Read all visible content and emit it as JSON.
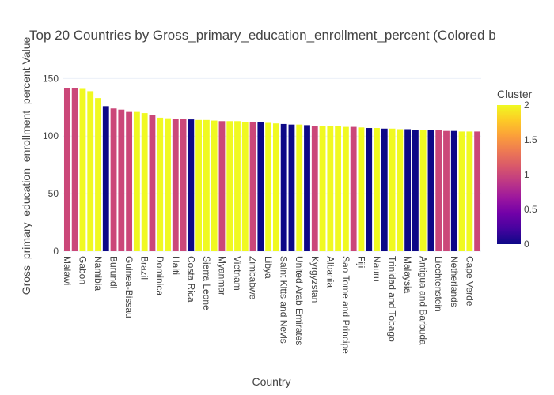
{
  "chart_data": {
    "type": "bar",
    "title": "Top 20 Countries by Gross_primary_education_enrollment_percent (Colored b",
    "x_label": "Country",
    "y_label": "Gross_primary_education_enrollment_percent Value",
    "categories": [
      "Malawi",
      null,
      "Gabon",
      null,
      "Namibia",
      null,
      "Burundi",
      null,
      "Guinea-Bissau",
      null,
      "Brazil",
      null,
      "Dominica",
      null,
      "Haiti",
      null,
      "Costa Rica",
      null,
      "Sierra Leone",
      null,
      "Myanmar",
      null,
      "Vietnam",
      null,
      "Zimbabwe",
      null,
      "Libya",
      null,
      "Saint Kitts and Nevis",
      null,
      "United Arab Emirates",
      null,
      "Kyrgyzstan",
      null,
      "Albania",
      null,
      "Sao Tome and Principe",
      null,
      "Fiji",
      null,
      "Nauru",
      null,
      "Trinidad and Tobago",
      null,
      "Malaysia",
      null,
      "Antigua and Barbuda",
      null,
      "Liechtenstein",
      null,
      "Netherlands",
      null,
      "Cape Verde",
      null
    ],
    "values": [
      142,
      142,
      141,
      139,
      133,
      126,
      124,
      123,
      121,
      121,
      120,
      118,
      116,
      115.5,
      115,
      115,
      114.5,
      114,
      114,
      113.5,
      113,
      113,
      113,
      112.5,
      112.5,
      112,
      111.5,
      111,
      110.5,
      110,
      110,
      109.5,
      109,
      109,
      108.5,
      108.5,
      108,
      108,
      107.5,
      107,
      107,
      106.5,
      106.5,
      106,
      106,
      105.5,
      105.5,
      105,
      105,
      104.5,
      104.5,
      104,
      104,
      104
    ],
    "cluster": [
      1,
      1,
      2,
      2,
      2,
      0,
      1,
      1,
      1,
      2,
      2,
      1,
      2,
      2,
      1,
      1,
      0,
      2,
      2,
      2,
      1,
      2,
      2,
      2,
      1,
      0,
      2,
      2,
      0,
      0,
      2,
      0,
      1,
      2,
      2,
      2,
      2,
      1,
      2,
      0,
      2,
      0,
      2,
      2,
      0,
      0,
      2,
      0,
      1,
      1,
      0,
      2,
      2,
      1
    ],
    "colorbar_title": "Cluster",
    "colorbar_lim": [
      0,
      2
    ],
    "colorbar_ticks": [
      0,
      0.5,
      1,
      1.5,
      2
    ],
    "colorscale": [
      "#0d0887",
      "#46039f",
      "#7201a8",
      "#9c179e",
      "#bd3786",
      "#d8576b",
      "#ed7953",
      "#fb9f3a",
      "#fdca26",
      "#f0f921"
    ],
    "ylim": [
      0,
      177
    ],
    "yticks": [
      0,
      50,
      100,
      150
    ],
    "grid": true
  }
}
